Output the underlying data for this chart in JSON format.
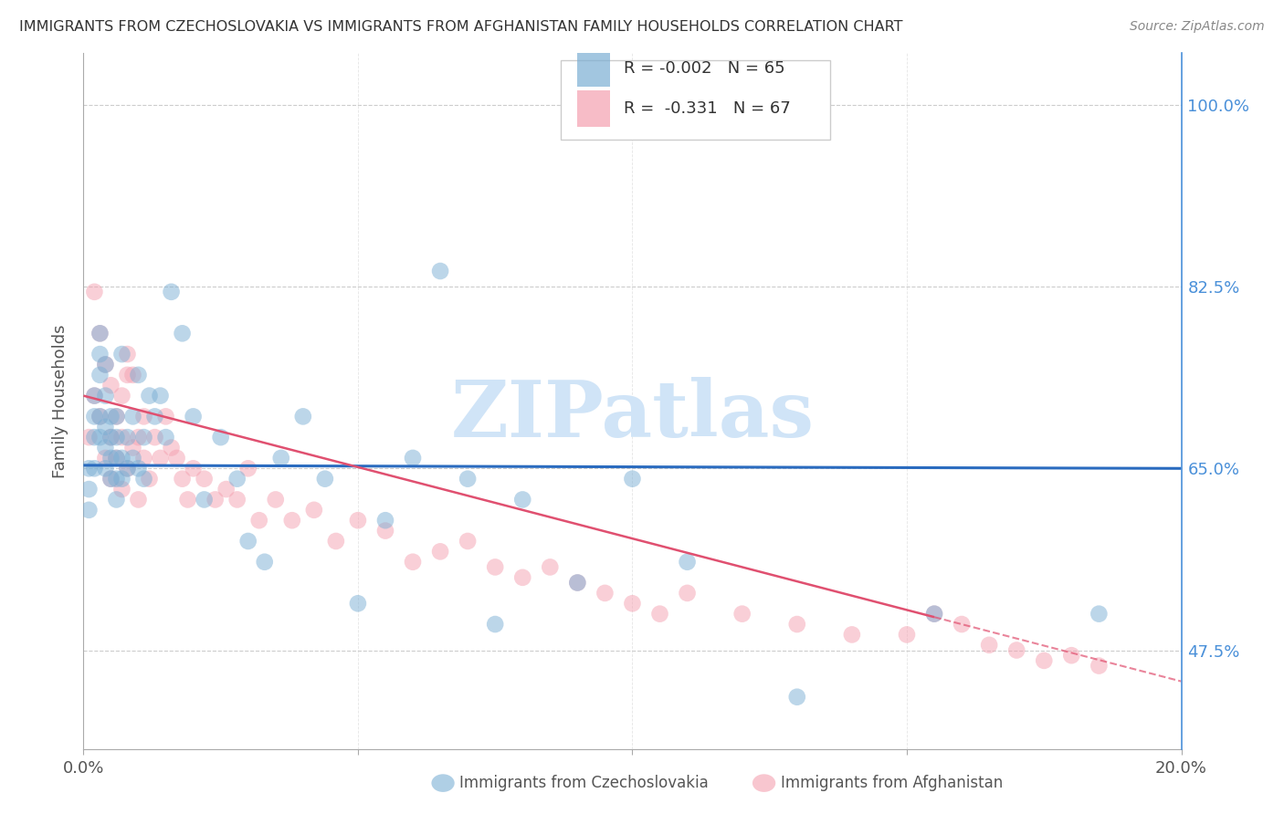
{
  "title": "IMMIGRANTS FROM CZECHOSLOVAKIA VS IMMIGRANTS FROM AFGHANISTAN FAMILY HOUSEHOLDS CORRELATION CHART",
  "source": "Source: ZipAtlas.com",
  "ylabel": "Family Households",
  "ytick_labels": [
    "100.0%",
    "82.5%",
    "65.0%",
    "47.5%"
  ],
  "ytick_values": [
    1.0,
    0.825,
    0.65,
    0.475
  ],
  "xlim": [
    0.0,
    0.2
  ],
  "ylim": [
    0.38,
    1.05
  ],
  "legend_r1": "R = -0.002",
  "legend_n1": "N = 65",
  "legend_r2": "R =  -0.331",
  "legend_n2": "N = 67",
  "color_czech": "#7bafd4",
  "color_afghan": "#f4a0b0",
  "color_title": "#333333",
  "color_right_axis": "#4a90d9",
  "background_color": "#ffffff",
  "watermark_text": "ZIPatlas",
  "watermark_color": "#d0e4f7",
  "czech_x": [
    0.001,
    0.001,
    0.001,
    0.002,
    0.002,
    0.002,
    0.002,
    0.003,
    0.003,
    0.003,
    0.003,
    0.003,
    0.004,
    0.004,
    0.004,
    0.004,
    0.004,
    0.005,
    0.005,
    0.005,
    0.005,
    0.006,
    0.006,
    0.006,
    0.006,
    0.006,
    0.007,
    0.007,
    0.007,
    0.008,
    0.008,
    0.009,
    0.009,
    0.01,
    0.01,
    0.011,
    0.011,
    0.012,
    0.013,
    0.014,
    0.015,
    0.016,
    0.018,
    0.02,
    0.022,
    0.025,
    0.028,
    0.03,
    0.033,
    0.036,
    0.04,
    0.044,
    0.05,
    0.055,
    0.06,
    0.065,
    0.07,
    0.075,
    0.08,
    0.09,
    0.1,
    0.11,
    0.13,
    0.155,
    0.185
  ],
  "czech_y": [
    0.65,
    0.63,
    0.61,
    0.68,
    0.7,
    0.72,
    0.65,
    0.68,
    0.7,
    0.78,
    0.76,
    0.74,
    0.65,
    0.67,
    0.69,
    0.72,
    0.75,
    0.64,
    0.66,
    0.68,
    0.7,
    0.62,
    0.64,
    0.66,
    0.68,
    0.7,
    0.64,
    0.66,
    0.76,
    0.65,
    0.68,
    0.66,
    0.7,
    0.65,
    0.74,
    0.64,
    0.68,
    0.72,
    0.7,
    0.72,
    0.68,
    0.82,
    0.78,
    0.7,
    0.62,
    0.68,
    0.64,
    0.58,
    0.56,
    0.66,
    0.7,
    0.64,
    0.52,
    0.6,
    0.66,
    0.84,
    0.64,
    0.5,
    0.62,
    0.54,
    0.64,
    0.56,
    0.43,
    0.51,
    0.51
  ],
  "afghan_x": [
    0.001,
    0.002,
    0.002,
    0.003,
    0.003,
    0.004,
    0.004,
    0.005,
    0.005,
    0.005,
    0.006,
    0.006,
    0.007,
    0.007,
    0.007,
    0.008,
    0.008,
    0.008,
    0.009,
    0.009,
    0.01,
    0.01,
    0.011,
    0.011,
    0.012,
    0.013,
    0.014,
    0.015,
    0.016,
    0.017,
    0.018,
    0.019,
    0.02,
    0.022,
    0.024,
    0.026,
    0.028,
    0.03,
    0.032,
    0.035,
    0.038,
    0.042,
    0.046,
    0.05,
    0.055,
    0.06,
    0.065,
    0.07,
    0.075,
    0.08,
    0.085,
    0.09,
    0.095,
    0.1,
    0.105,
    0.11,
    0.12,
    0.13,
    0.14,
    0.15,
    0.155,
    0.16,
    0.165,
    0.17,
    0.175,
    0.18,
    0.185
  ],
  "afghan_y": [
    0.68,
    0.72,
    0.82,
    0.7,
    0.78,
    0.66,
    0.75,
    0.64,
    0.68,
    0.73,
    0.66,
    0.7,
    0.63,
    0.68,
    0.72,
    0.65,
    0.74,
    0.76,
    0.67,
    0.74,
    0.62,
    0.68,
    0.66,
    0.7,
    0.64,
    0.68,
    0.66,
    0.7,
    0.67,
    0.66,
    0.64,
    0.62,
    0.65,
    0.64,
    0.62,
    0.63,
    0.62,
    0.65,
    0.6,
    0.62,
    0.6,
    0.61,
    0.58,
    0.6,
    0.59,
    0.56,
    0.57,
    0.58,
    0.555,
    0.545,
    0.555,
    0.54,
    0.53,
    0.52,
    0.51,
    0.53,
    0.51,
    0.5,
    0.49,
    0.49,
    0.51,
    0.5,
    0.48,
    0.475,
    0.465,
    0.47,
    0.46
  ],
  "czech_line_x": [
    0.0,
    0.2
  ],
  "czech_line_y": [
    0.653,
    0.65
  ],
  "afghan_line_x": [
    0.0,
    0.2
  ],
  "afghan_line_y": [
    0.72,
    0.445
  ]
}
